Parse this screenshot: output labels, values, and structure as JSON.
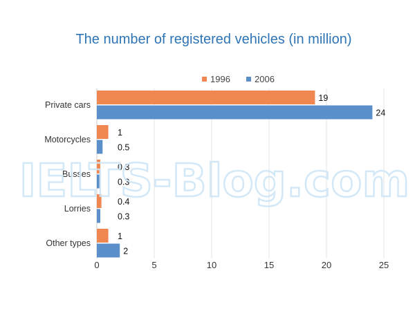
{
  "chart_data": {
    "type": "bar",
    "orientation": "horizontal",
    "title": "The number of registered vehicles (in million)",
    "categories": [
      "Private cars",
      "Motorcycles",
      "Busses",
      "Lorries",
      "Other types"
    ],
    "series": [
      {
        "name": "1996",
        "color": "#f08650",
        "values": [
          19,
          1,
          0.3,
          0.4,
          1
        ]
      },
      {
        "name": "2006",
        "color": "#5b8fc9",
        "values": [
          24,
          0.5,
          0.3,
          0.3,
          2
        ]
      }
    ],
    "xlim": [
      0,
      25
    ],
    "xticks": [
      0,
      5,
      10,
      15,
      20,
      25
    ],
    "grid": "vertical",
    "legend": "top-center"
  },
  "watermark": "IELTS-Blog.com",
  "colors": {
    "title": "#2e74b5",
    "grid": "#e3e3e3"
  }
}
